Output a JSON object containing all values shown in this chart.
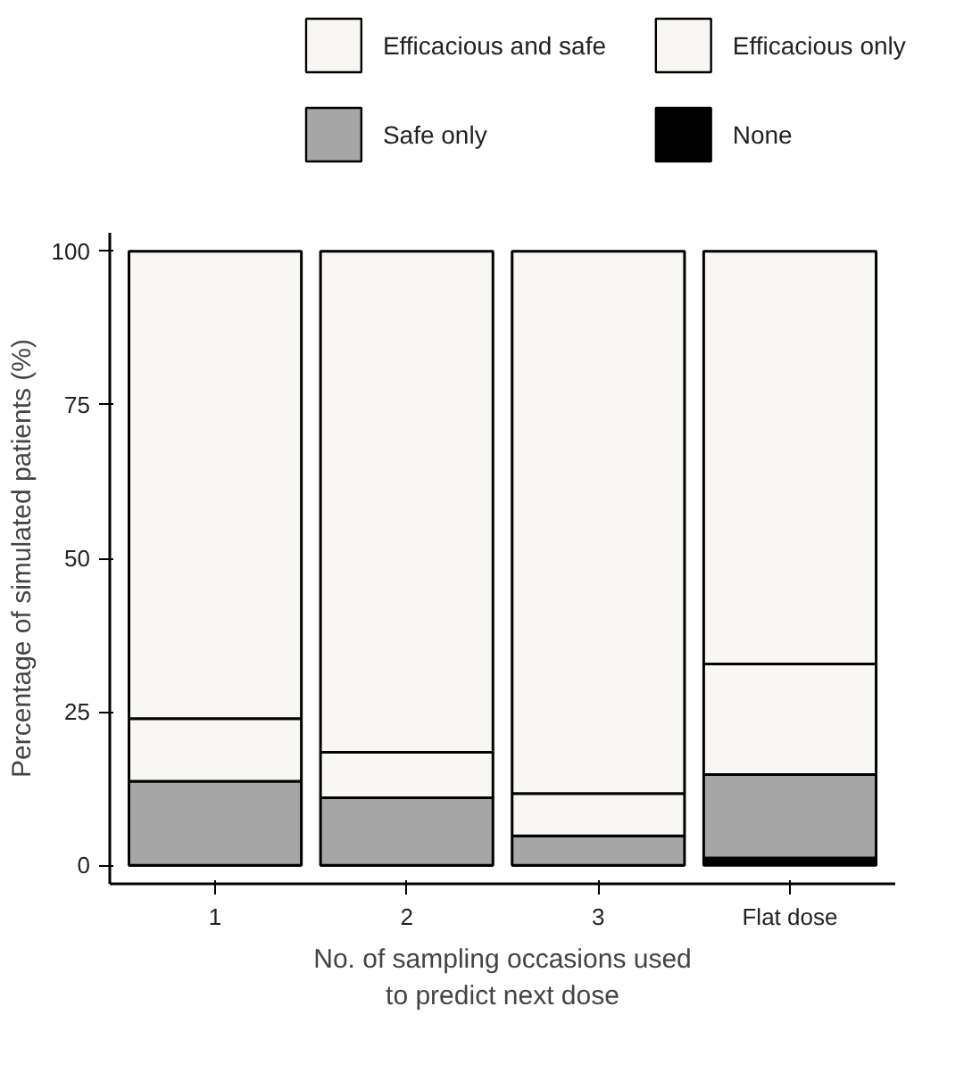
{
  "chart_data": {
    "type": "bar",
    "stacked": true,
    "xlabel": "No. of sampling occasions used\nto predict next dose",
    "ylabel": "Percentage of simulated patients (%)",
    "categories": [
      "1",
      "2",
      "3",
      "Flat dose"
    ],
    "series": [
      {
        "name": "None",
        "color": "#000000",
        "values": [
          0,
          0,
          0,
          1.2
        ]
      },
      {
        "name": "Safe only",
        "color": "#a6a6a6",
        "values": [
          13.7,
          11.0,
          4.8,
          13.6
        ]
      },
      {
        "name": "Efficacious only",
        "color": "#f8f7f3",
        "values": [
          10.2,
          7.4,
          6.9,
          18.0
        ]
      },
      {
        "name": "Efficacious and safe",
        "color": "#f8f7f3",
        "values": [
          76.1,
          81.6,
          88.3,
          67.2
        ]
      }
    ],
    "ylim": [
      -3,
      103
    ],
    "yticks": [
      0,
      25,
      50,
      75,
      100
    ],
    "grid": false,
    "legend": "top"
  }
}
